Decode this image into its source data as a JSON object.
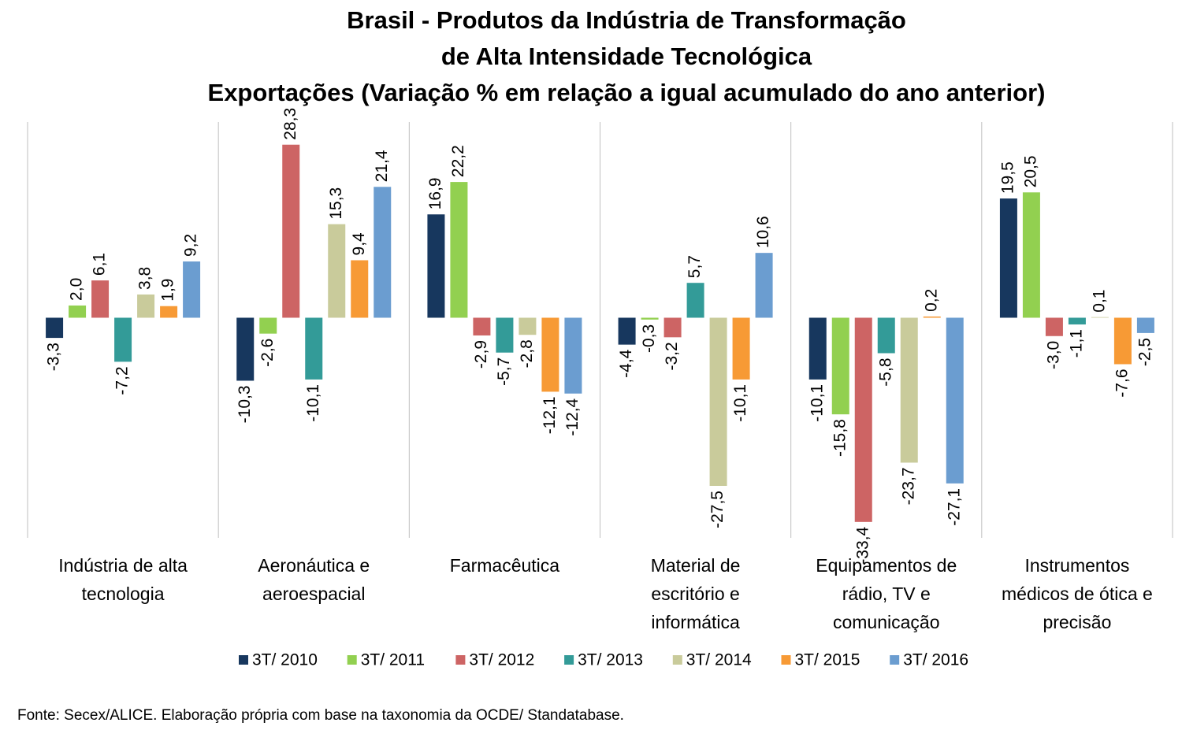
{
  "chart_data": {
    "type": "bar",
    "title": [
      "Brasil - Produtos da Indústria de Transformação",
      "de Alta Intensidade Tecnológica",
      "Exportações (Variação % em relação a igual acumulado do ano anterior)"
    ],
    "categories": [
      [
        "Indústria de alta",
        "tecnologia"
      ],
      [
        "Aeronáutica e",
        "aeroespacial"
      ],
      [
        "Farmacêutica"
      ],
      [
        "Material de",
        "escritório e",
        "informática"
      ],
      [
        "Equipamentos de",
        "rádio, TV e",
        "comunicação"
      ],
      [
        "Instrumentos",
        "médicos de ótica e",
        "precisão"
      ]
    ],
    "ylim": [
      -36,
      32
    ],
    "series": [
      {
        "name": "3T/ 2010",
        "color": "#17375e",
        "values": [
          -3.3,
          -10.3,
          16.9,
          -4.4,
          -10.1,
          19.5
        ],
        "value_labels": [
          "-3,3",
          "-10,3",
          "16,9",
          "-4,4",
          "-10,1",
          "19,5"
        ]
      },
      {
        "name": "3T/ 2011",
        "color": "#92d050",
        "values": [
          2.0,
          -2.6,
          22.2,
          -0.3,
          -15.8,
          20.5
        ],
        "value_labels": [
          "2,0",
          "-2,6",
          "22,2",
          "-0,3",
          "-15,8",
          "20,5"
        ]
      },
      {
        "name": "3T/ 2012",
        "color": "#cd6464",
        "values": [
          6.1,
          28.3,
          -2.9,
          -3.2,
          -33.4,
          -3.0
        ],
        "value_labels": [
          "6,1",
          "28,3",
          "-2,9",
          "-3,2",
          "-33,4",
          "-3,0"
        ]
      },
      {
        "name": "3T/ 2013",
        "color": "#339b98",
        "values": [
          -7.2,
          -10.1,
          -5.7,
          5.7,
          -5.8,
          -1.1
        ],
        "value_labels": [
          "-7,2",
          "-10,1",
          "-5,7",
          "5,7",
          "-5,8",
          "-1,1"
        ]
      },
      {
        "name": "3T/ 2014",
        "color": "#c9cb9b",
        "values": [
          3.8,
          15.3,
          -2.8,
          -27.5,
          -23.7,
          0.1
        ],
        "value_labels": [
          "3,8",
          "15,3",
          "-2,8",
          "-27,5",
          "-23,7",
          "0,1"
        ]
      },
      {
        "name": "3T/ 2015",
        "color": "#f79a35",
        "values": [
          1.9,
          9.4,
          -12.1,
          -10.1,
          0.2,
          -7.6
        ],
        "value_labels": [
          "1,9",
          "9,4",
          "-12,1",
          "-10,1",
          "0,2",
          "-7,6"
        ]
      },
      {
        "name": "3T/ 2016",
        "color": "#6b9dd0",
        "values": [
          9.2,
          21.4,
          -12.4,
          10.6,
          -27.1,
          -2.5
        ],
        "value_labels": [
          "9,2",
          "21,4",
          "-12,4",
          "10,6",
          "-27,1",
          "-2,5"
        ]
      }
    ],
    "source": "Fonte: Secex/ALICE. Elaboração própria com base na taxonomia da OCDE/ Standatabase."
  }
}
